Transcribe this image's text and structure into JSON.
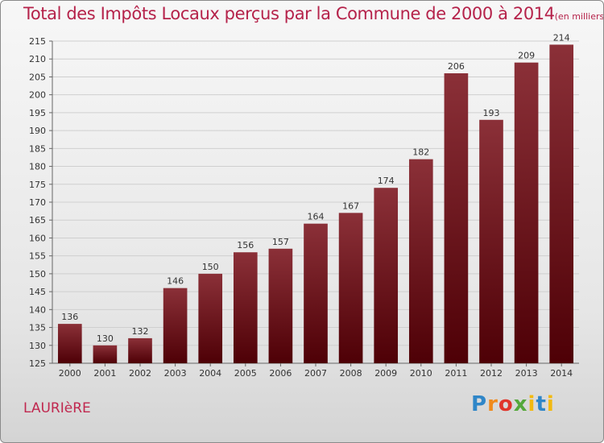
{
  "chart_data": {
    "type": "bar",
    "title": "Total des Impôts Locaux perçus par la Commune de 2000 à 2014",
    "unit": "(en milliers d'€)",
    "categories": [
      "2000",
      "2001",
      "2002",
      "2003",
      "2004",
      "2005",
      "2006",
      "2007",
      "2008",
      "2009",
      "2010",
      "2011",
      "2012",
      "2013",
      "2014"
    ],
    "values": [
      136,
      130,
      132,
      146,
      150,
      156,
      157,
      164,
      167,
      174,
      182,
      206,
      193,
      209,
      214
    ],
    "ylim": [
      125,
      215
    ],
    "yticks": [
      125,
      130,
      135,
      140,
      145,
      150,
      155,
      160,
      165,
      170,
      175,
      180,
      185,
      190,
      195,
      200,
      205,
      210,
      215
    ],
    "xlabel": "",
    "ylabel": "",
    "grid": true,
    "colors": {
      "bar_top": "#8b3038",
      "bar_bottom": "#4e0006",
      "title": "#b5224a"
    }
  },
  "commune": "LAURIèRE",
  "logo": {
    "text": "Proxiti"
  }
}
